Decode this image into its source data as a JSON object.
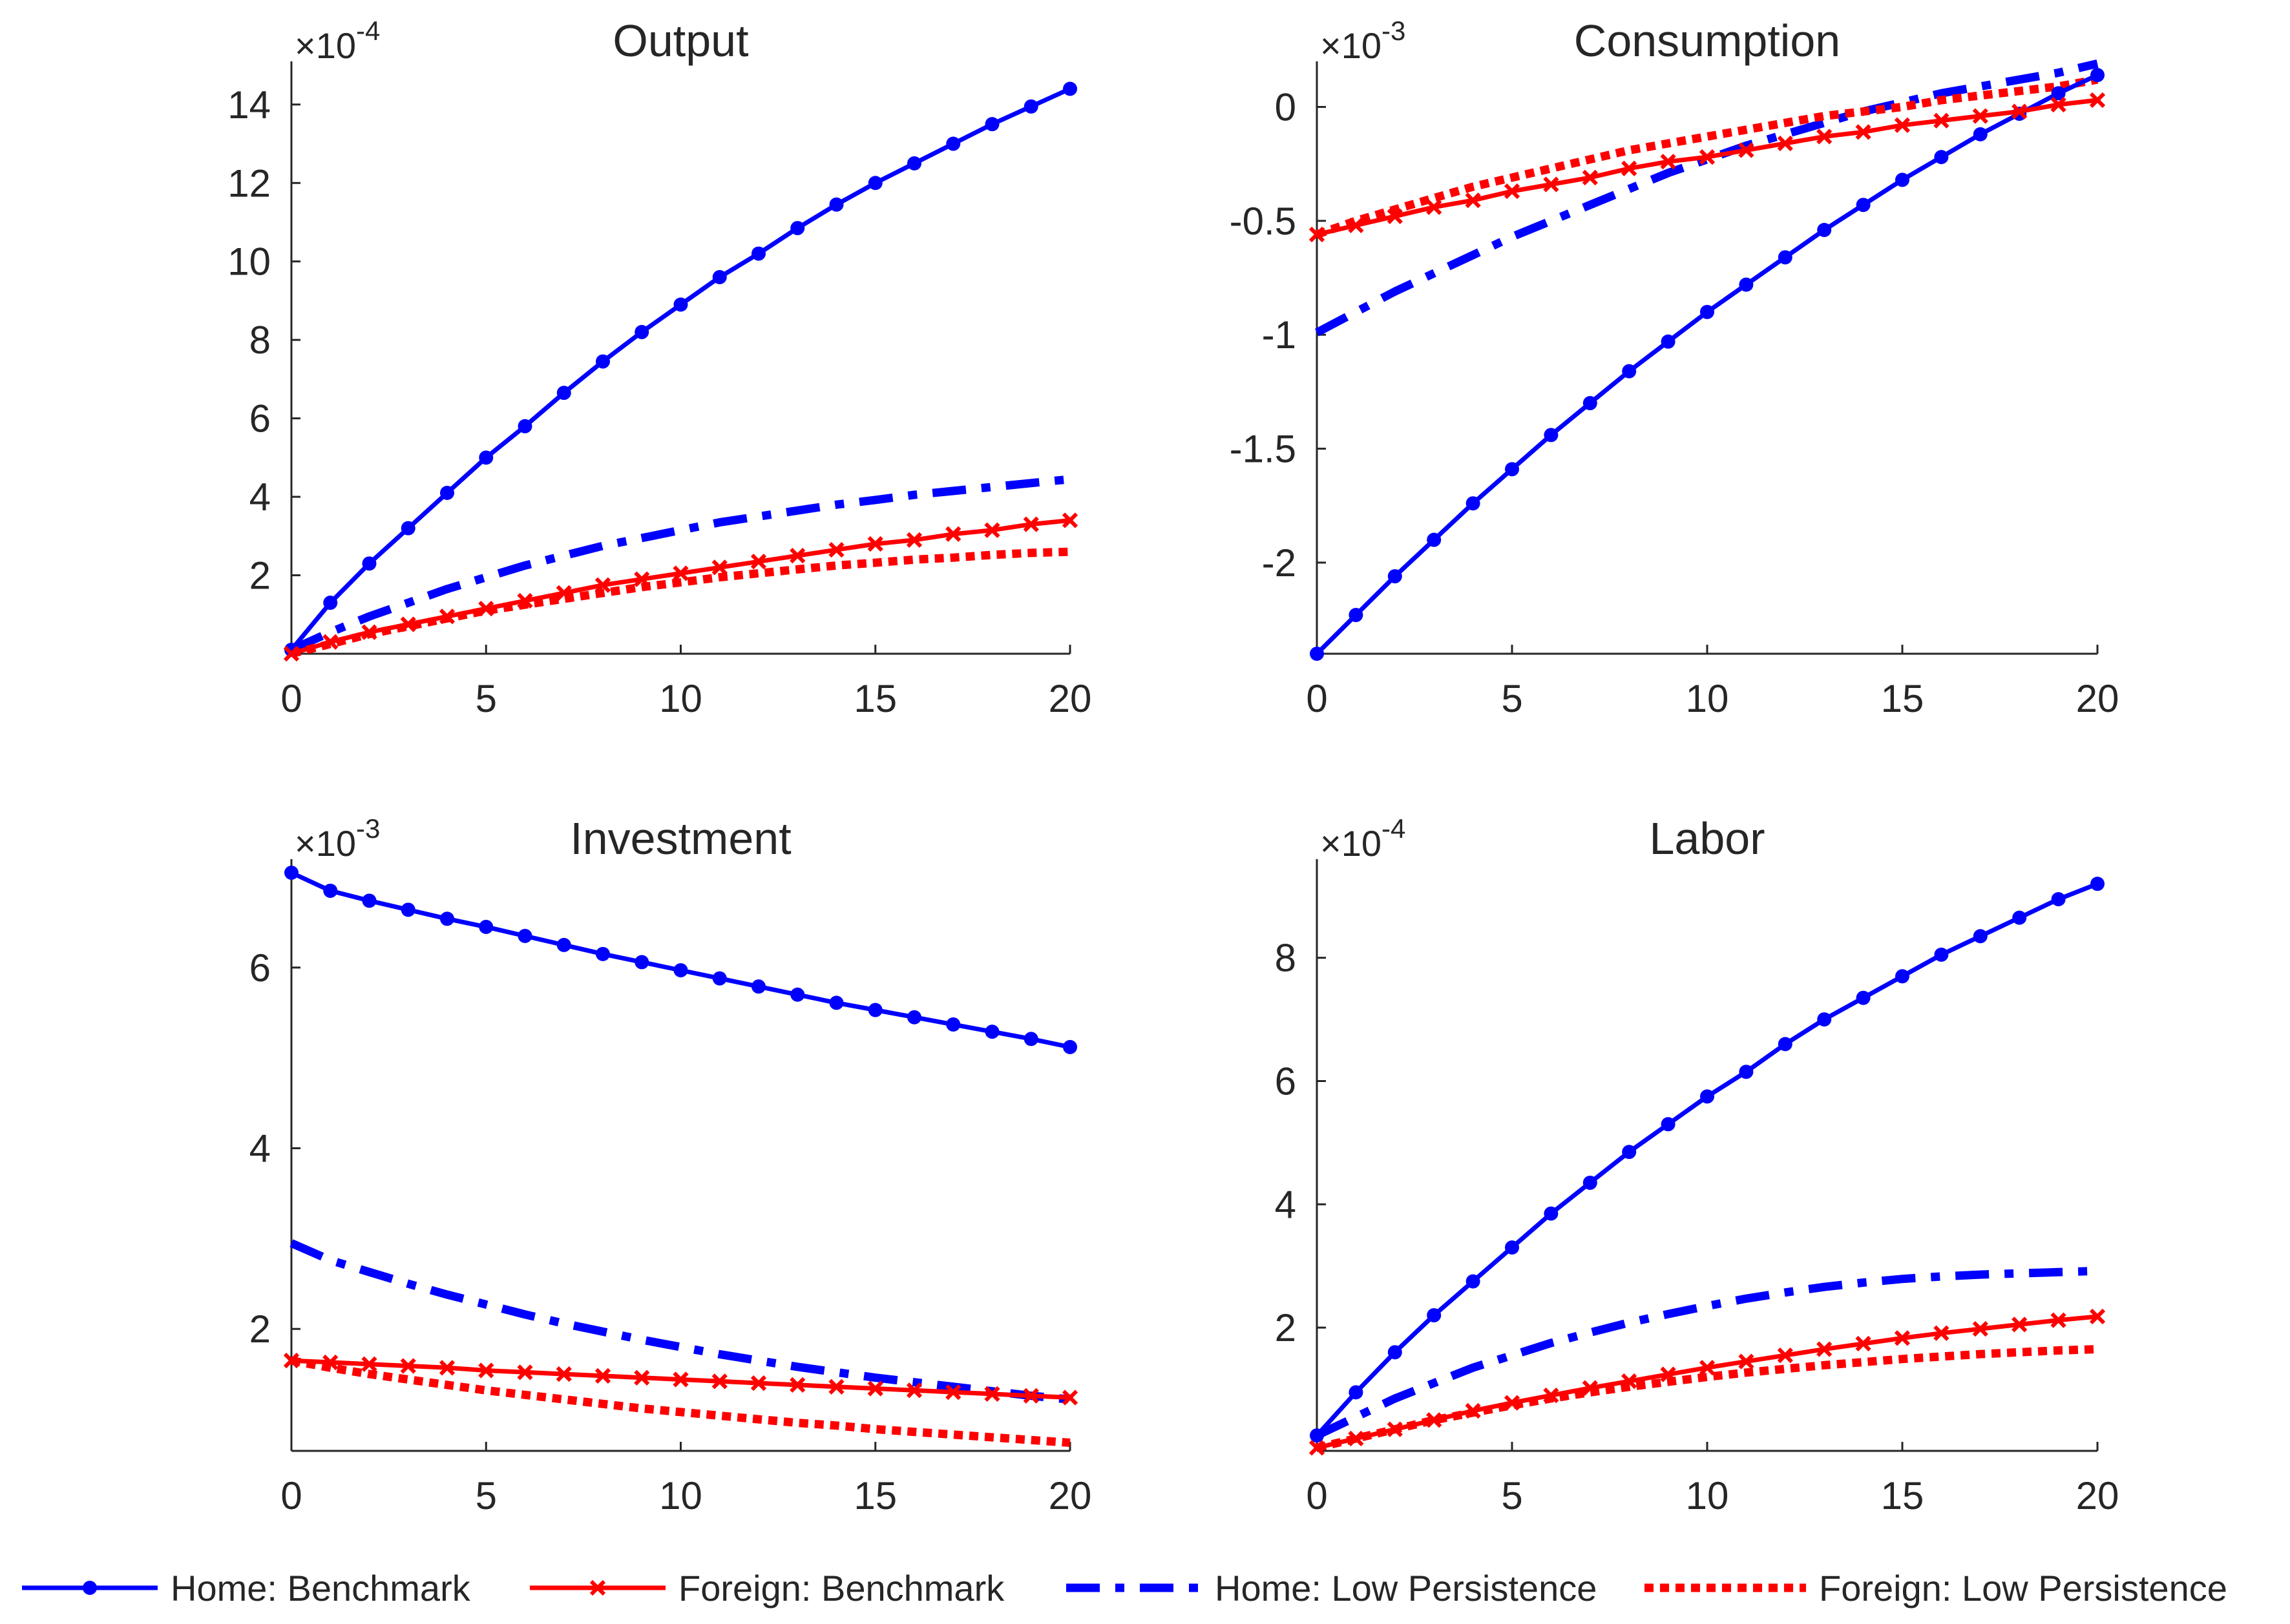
{
  "chart_data": [
    {
      "type": "line",
      "title": "Output",
      "exponent_base": "×10",
      "exponent": "-4",
      "xlabel": "",
      "ylabel": "",
      "xlim": [
        0,
        20
      ],
      "ylim": [
        0,
        15.1
      ],
      "xticks": [
        0,
        5,
        10,
        15,
        20
      ],
      "yticks": [
        2,
        4,
        6,
        8,
        10,
        12,
        14
      ],
      "x": [
        0,
        1,
        2,
        3,
        4,
        5,
        6,
        7,
        8,
        9,
        10,
        11,
        12,
        13,
        14,
        15,
        16,
        17,
        18,
        19,
        20
      ],
      "series": [
        {
          "name": "Home: Benchmark",
          "values": [
            0.1,
            1.3,
            2.3,
            3.2,
            4.1,
            5.0,
            5.8,
            6.65,
            7.45,
            8.2,
            8.9,
            9.6,
            10.2,
            10.85,
            11.45,
            12.0,
            12.5,
            13.0,
            13.5,
            13.95,
            14.4
          ]
        },
        {
          "name": "Foreign: Benchmark",
          "values": [
            0,
            0.3,
            0.55,
            0.75,
            0.95,
            1.15,
            1.35,
            1.55,
            1.75,
            1.9,
            2.05,
            2.2,
            2.35,
            2.5,
            2.65,
            2.8,
            2.9,
            3.05,
            3.15,
            3.3,
            3.4
          ]
        },
        {
          "name": "Home: Low Persistence",
          "values": [
            0.1,
            0.55,
            0.95,
            1.3,
            1.65,
            1.95,
            2.25,
            2.5,
            2.75,
            2.95,
            3.15,
            3.35,
            3.5,
            3.65,
            3.8,
            3.92,
            4.05,
            4.15,
            4.25,
            4.35,
            4.45
          ]
        },
        {
          "name": "Foreign: Low Persistence",
          "values": [
            0,
            0.25,
            0.5,
            0.7,
            0.9,
            1.1,
            1.25,
            1.4,
            1.55,
            1.7,
            1.82,
            1.95,
            2.05,
            2.15,
            2.25,
            2.32,
            2.4,
            2.45,
            2.52,
            2.57,
            2.6
          ]
        }
      ]
    },
    {
      "type": "line",
      "title": "Consumption",
      "exponent_base": "×10",
      "exponent": "-3",
      "xlabel": "",
      "ylabel": "",
      "xlim": [
        0,
        20
      ],
      "ylim": [
        -2.4,
        0.2
      ],
      "xticks": [
        0,
        5,
        10,
        15,
        20
      ],
      "yticks": [
        -2,
        -1.5,
        -1,
        -0.5,
        0
      ],
      "x": [
        0,
        1,
        2,
        3,
        4,
        5,
        6,
        7,
        8,
        9,
        10,
        11,
        12,
        13,
        14,
        15,
        16,
        17,
        18,
        19,
        20
      ],
      "series": [
        {
          "name": "Home: Benchmark",
          "values": [
            -2.4,
            -2.23,
            -2.06,
            -1.9,
            -1.74,
            -1.59,
            -1.44,
            -1.3,
            -1.16,
            -1.03,
            -0.9,
            -0.78,
            -0.66,
            -0.54,
            -0.43,
            -0.32,
            -0.22,
            -0.12,
            -0.03,
            0.06,
            0.14
          ]
        },
        {
          "name": "Foreign: Benchmark",
          "values": [
            -0.56,
            -0.52,
            -0.48,
            -0.44,
            -0.41,
            -0.37,
            -0.34,
            -0.31,
            -0.27,
            -0.24,
            -0.22,
            -0.19,
            -0.16,
            -0.13,
            -0.11,
            -0.08,
            -0.06,
            -0.04,
            -0.02,
            0.01,
            0.03
          ]
        },
        {
          "name": "Home: Low Persistence",
          "values": [
            -0.99,
            -0.9,
            -0.81,
            -0.73,
            -0.65,
            -0.57,
            -0.5,
            -0.43,
            -0.36,
            -0.29,
            -0.23,
            -0.17,
            -0.12,
            -0.07,
            -0.02,
            0.02,
            0.06,
            0.09,
            0.12,
            0.15,
            0.19
          ]
        },
        {
          "name": "Foreign: Low Persistence",
          "values": [
            -0.56,
            -0.5,
            -0.45,
            -0.4,
            -0.35,
            -0.31,
            -0.27,
            -0.23,
            -0.19,
            -0.16,
            -0.13,
            -0.1,
            -0.07,
            -0.04,
            -0.02,
            0.0,
            0.03,
            0.05,
            0.07,
            0.09,
            0.12
          ]
        }
      ]
    },
    {
      "type": "line",
      "title": "Investment",
      "exponent_base": "×10",
      "exponent": "-3",
      "xlabel": "",
      "ylabel": "",
      "xlim": [
        0,
        20
      ],
      "ylim": [
        0.65,
        7.2
      ],
      "xticks": [
        0,
        5,
        10,
        15,
        20
      ],
      "yticks": [
        2,
        4,
        6
      ],
      "x": [
        0,
        1,
        2,
        3,
        4,
        5,
        6,
        7,
        8,
        9,
        10,
        11,
        12,
        13,
        14,
        15,
        16,
        17,
        18,
        19,
        20
      ],
      "series": [
        {
          "name": "Home: Benchmark",
          "values": [
            7.05,
            6.85,
            6.74,
            6.64,
            6.54,
            6.45,
            6.35,
            6.25,
            6.15,
            6.06,
            5.97,
            5.88,
            5.79,
            5.7,
            5.61,
            5.53,
            5.45,
            5.37,
            5.29,
            5.21,
            5.12
          ]
        },
        {
          "name": "Foreign: Benchmark",
          "values": [
            1.65,
            1.63,
            1.61,
            1.59,
            1.57,
            1.54,
            1.52,
            1.5,
            1.48,
            1.46,
            1.44,
            1.42,
            1.4,
            1.38,
            1.36,
            1.34,
            1.32,
            1.3,
            1.28,
            1.26,
            1.24
          ]
        },
        {
          "name": "Home: Low Persistence",
          "values": [
            2.95,
            2.76,
            2.63,
            2.5,
            2.38,
            2.27,
            2.16,
            2.06,
            1.97,
            1.88,
            1.8,
            1.72,
            1.65,
            1.58,
            1.52,
            1.46,
            1.41,
            1.36,
            1.31,
            1.26,
            1.22
          ]
        },
        {
          "name": "Foreign: Low Persistence",
          "values": [
            1.65,
            1.57,
            1.5,
            1.44,
            1.38,
            1.32,
            1.27,
            1.22,
            1.17,
            1.12,
            1.08,
            1.04,
            1.0,
            0.96,
            0.93,
            0.89,
            0.86,
            0.83,
            0.8,
            0.77,
            0.74
          ]
        }
      ]
    },
    {
      "type": "line",
      "title": "Labor",
      "exponent_base": "×10",
      "exponent": "-4",
      "xlabel": "",
      "ylabel": "",
      "xlim": [
        0,
        20
      ],
      "ylim": [
        0,
        9.6
      ],
      "xticks": [
        0,
        5,
        10,
        15,
        20
      ],
      "yticks": [
        2,
        4,
        6,
        8
      ],
      "x": [
        0,
        1,
        2,
        3,
        4,
        5,
        6,
        7,
        8,
        9,
        10,
        11,
        12,
        13,
        14,
        15,
        16,
        17,
        18,
        19,
        20
      ],
      "series": [
        {
          "name": "Home: Benchmark",
          "values": [
            0.25,
            0.95,
            1.6,
            2.2,
            2.75,
            3.3,
            3.85,
            4.35,
            4.85,
            5.3,
            5.75,
            6.15,
            6.6,
            7.0,
            7.35,
            7.7,
            8.05,
            8.35,
            8.65,
            8.95,
            9.2
          ]
        },
        {
          "name": "Foreign: Benchmark",
          "values": [
            0.05,
            0.2,
            0.35,
            0.5,
            0.65,
            0.78,
            0.9,
            1.02,
            1.13,
            1.24,
            1.35,
            1.45,
            1.55,
            1.65,
            1.74,
            1.83,
            1.91,
            1.98,
            2.05,
            2.12,
            2.18
          ]
        },
        {
          "name": "Home: Low Persistence",
          "values": [
            0.25,
            0.55,
            0.85,
            1.1,
            1.35,
            1.55,
            1.75,
            1.92,
            2.08,
            2.22,
            2.35,
            2.47,
            2.57,
            2.66,
            2.73,
            2.79,
            2.83,
            2.86,
            2.88,
            2.9,
            2.92
          ]
        },
        {
          "name": "Foreign: Low Persistence",
          "values": [
            0.05,
            0.2,
            0.35,
            0.5,
            0.62,
            0.74,
            0.85,
            0.95,
            1.04,
            1.12,
            1.2,
            1.27,
            1.33,
            1.39,
            1.44,
            1.49,
            1.53,
            1.57,
            1.6,
            1.63,
            1.65
          ]
        }
      ]
    }
  ],
  "legend": {
    "placement": "bottom",
    "items": [
      {
        "label": "Home: Benchmark",
        "color": "#0000ff",
        "style": "solid",
        "marker": "dot"
      },
      {
        "label": "Foreign: Benchmark",
        "color": "#ff0000",
        "style": "solid",
        "marker": "x"
      },
      {
        "label": "Home: Low Persistence",
        "color": "#0000ff",
        "style": "dashdot",
        "marker": "none"
      },
      {
        "label": "Foreign: Low Persistence",
        "color": "#ff0000",
        "style": "dotted",
        "marker": "none"
      }
    ]
  },
  "colors": {
    "home": "#0000ff",
    "foreign": "#ff0000",
    "axis": "#262626"
  }
}
